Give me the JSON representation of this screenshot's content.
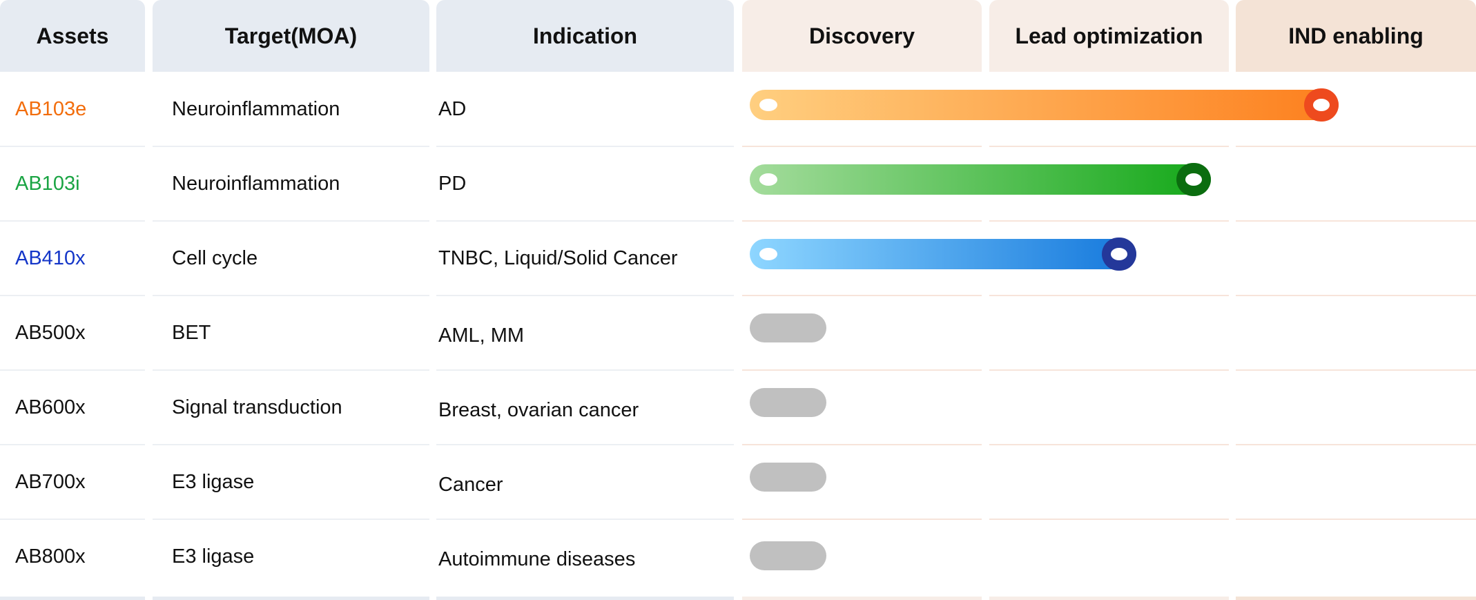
{
  "headers": {
    "assets": "Assets",
    "target": "Target(MOA)",
    "indication": "Indication",
    "discovery": "Discovery",
    "lead": "Lead optimization",
    "ind": "IND enabling"
  },
  "colors": {
    "orange": "#f26d0c",
    "green": "#1aa443",
    "blue": "#1436c8",
    "grey": "#c0c0c0"
  },
  "rows": [
    {
      "asset": "AB103e",
      "target": "Neuroinflammation",
      "indication": "AD",
      "color": "#f26d0c"
    },
    {
      "asset": "AB103i",
      "target": "Neuroinflammation",
      "indication": "PD",
      "color": "#1aa443"
    },
    {
      "asset": "AB410x",
      "target": "Cell cycle",
      "indication": "TNBC, Liquid/Solid Cancer",
      "color": "#1436c8"
    },
    {
      "asset": "AB500x",
      "target": "BET",
      "indication": "AML, MM",
      "color": "#111111"
    },
    {
      "asset": "AB600x",
      "target": "Signal transduction",
      "indication": "Breast, ovarian cancer",
      "color": "#111111"
    },
    {
      "asset": "AB700x",
      "target": "E3 ligase",
      "indication": "Cancer",
      "color": "#111111"
    },
    {
      "asset": "AB800x",
      "target": "E3 ligase",
      "indication": "Autoimmune diseases",
      "color": "#111111"
    }
  ],
  "chart_data": {
    "type": "bar",
    "categories": [
      "AB103e",
      "AB103i",
      "AB410x",
      "AB500x",
      "AB600x",
      "AB700x",
      "AB800x"
    ],
    "stages": [
      "Discovery",
      "Lead optimization",
      "IND enabling"
    ],
    "values": [
      2.45,
      1.92,
      1.61,
      0.32,
      0.32,
      0.32,
      0.32
    ],
    "xlim": [
      0,
      3
    ],
    "bar_colors": [
      {
        "from": "#ffcf80",
        "to": "#fd7f1d",
        "end": "#ee4a1e"
      },
      {
        "from": "#a4dc9c",
        "to": "#13a818",
        "end": "#0b6d0f"
      },
      {
        "from": "#8ed6ff",
        "to": "#1478dc",
        "end": "#24389a"
      },
      {
        "from": "#c0c0c0",
        "to": "#c0c0c0",
        "end": ""
      },
      {
        "from": "#c0c0c0",
        "to": "#c0c0c0",
        "end": ""
      },
      {
        "from": "#c0c0c0",
        "to": "#c0c0c0",
        "end": ""
      },
      {
        "from": "#c0c0c0",
        "to": "#c0c0c0",
        "end": ""
      }
    ]
  }
}
